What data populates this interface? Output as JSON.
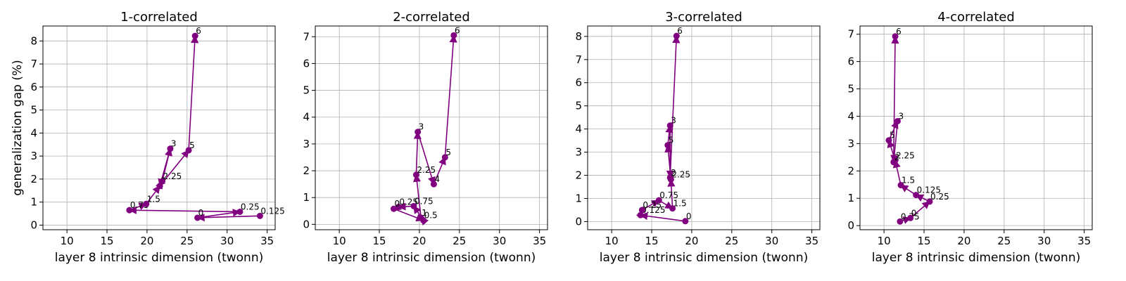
{
  "chart_data": [
    {
      "type": "line",
      "title": "1-correlated",
      "xlabel": "layer 8 intrinsic dimension (twonn)",
      "ylabel": "generalization gap (%)",
      "xlim": [
        7,
        36
      ],
      "ylim": [
        -0.2,
        8.65
      ],
      "xticks": [
        10,
        15,
        20,
        25,
        30,
        35
      ],
      "yticks": [
        0,
        1,
        2,
        3,
        4,
        5,
        6,
        7,
        8
      ],
      "color": "#800080",
      "grid": true,
      "points": [
        {
          "label": "0",
          "x": 26.3,
          "y": 0.32
        },
        {
          "label": "0.125",
          "x": 34.1,
          "y": 0.4
        },
        {
          "label": "0.25",
          "x": 31.6,
          "y": 0.58
        },
        {
          "label": "0.75",
          "x": 17.8,
          "y": 0.65
        },
        {
          "label": "1.5",
          "x": 19.9,
          "y": 0.92
        },
        {
          "label": "1",
          "x": 21.6,
          "y": 1.7
        },
        {
          "label": "2.25",
          "x": 21.9,
          "y": 1.9
        },
        {
          "label": "3",
          "x": 22.9,
          "y": 3.32
        },
        {
          "label": "5",
          "x": 25.2,
          "y": 3.25
        },
        {
          "label": "6",
          "x": 26.0,
          "y": 8.22
        }
      ],
      "path": [
        "0.125",
        "0",
        "0.25",
        "0.75",
        "1.5",
        "1",
        "2.25",
        "3",
        "1",
        "5",
        "6"
      ]
    },
    {
      "type": "line",
      "title": "2-correlated",
      "xlabel": "layer 8 intrinsic dimension (twonn)",
      "ylabel": "",
      "xlim": [
        7,
        36
      ],
      "ylim": [
        -0.2,
        7.4
      ],
      "xticks": [
        10,
        15,
        20,
        25,
        30,
        35
      ],
      "yticks": [
        0,
        1,
        2,
        3,
        4,
        5,
        6,
        7
      ],
      "color": "#800080",
      "grid": true,
      "points": [
        {
          "label": "0.5",
          "x": 20.5,
          "y": 0.15
        },
        {
          "label": "1",
          "x": 20.2,
          "y": 0.25
        },
        {
          "label": "0.25",
          "x": 17.4,
          "y": 0.65
        },
        {
          "label": "0.75",
          "x": 19.3,
          "y": 0.68
        },
        {
          "label": "0",
          "x": 16.8,
          "y": 0.58
        },
        {
          "label": "2.25",
          "x": 19.6,
          "y": 1.85
        },
        {
          "label": "3",
          "x": 19.8,
          "y": 3.45
        },
        {
          "label": "4",
          "x": 21.8,
          "y": 1.5
        },
        {
          "label": "5",
          "x": 23.2,
          "y": 2.5
        },
        {
          "label": "6",
          "x": 24.3,
          "y": 7.05
        }
      ],
      "path": [
        "0.5",
        "0.75",
        "0.25",
        "0",
        "0.5",
        "1",
        "2.25",
        "3",
        "4",
        "5",
        "6"
      ]
    },
    {
      "type": "line",
      "title": "3-correlated",
      "xlabel": "layer 8 intrinsic dimension (twonn)",
      "ylabel": "",
      "xlim": [
        7,
        36
      ],
      "ylim": [
        -0.35,
        8.45
      ],
      "xticks": [
        10,
        15,
        20,
        25,
        30,
        35
      ],
      "yticks": [
        0,
        1,
        2,
        3,
        4,
        5,
        6,
        7,
        8
      ],
      "color": "#800080",
      "grid": true,
      "points": [
        {
          "label": "0",
          "x": 19.2,
          "y": 0.02
        },
        {
          "label": "0.125",
          "x": 13.6,
          "y": 0.28
        },
        {
          "label": "0.25",
          "x": 13.8,
          "y": 0.5
        },
        {
          "label": "0.75",
          "x": 15.9,
          "y": 0.92
        },
        {
          "label": "1.5",
          "x": 17.6,
          "y": 0.57
        },
        {
          "label": "2.25",
          "x": 17.4,
          "y": 1.82
        },
        {
          "label": "2",
          "x": 17.3,
          "y": 1.9
        },
        {
          "label": "5",
          "x": 17.0,
          "y": 3.3
        },
        {
          "label": "3",
          "x": 17.3,
          "y": 4.15
        },
        {
          "label": "6",
          "x": 18.1,
          "y": 8.02
        }
      ],
      "path": [
        "0",
        "0.125",
        "0.25",
        "0.75",
        "1.5",
        "2.25",
        "5",
        "3",
        "2",
        "6"
      ]
    },
    {
      "type": "line",
      "title": "4-correlated",
      "xlabel": "layer 8 intrinsic dimension (twonn)",
      "ylabel": "",
      "xlim": [
        7,
        36
      ],
      "ylim": [
        -0.15,
        7.3
      ],
      "xticks": [
        10,
        15,
        20,
        25,
        30,
        35
      ],
      "yticks": [
        0,
        1,
        2,
        3,
        4,
        5,
        6,
        7
      ],
      "color": "#800080",
      "grid": true,
      "points": [
        {
          "label": "0.75",
          "x": 12.0,
          "y": 0.15
        },
        {
          "label": "0",
          "x": 13.3,
          "y": 0.28
        },
        {
          "label": "0.25",
          "x": 15.7,
          "y": 0.88
        },
        {
          "label": "0.125",
          "x": 14.0,
          "y": 1.12
        },
        {
          "label": "1.5",
          "x": 12.1,
          "y": 1.48
        },
        {
          "label": "2.25",
          "x": 11.4,
          "y": 2.38
        },
        {
          "label": "2",
          "x": 11.2,
          "y": 2.32
        },
        {
          "label": "5",
          "x": 10.6,
          "y": 3.12
        },
        {
          "label": "3",
          "x": 11.7,
          "y": 3.82
        },
        {
          "label": "6",
          "x": 11.4,
          "y": 6.92
        }
      ],
      "path": [
        "0.75",
        "0",
        "0.25",
        "0.125",
        "1.5",
        "2.25",
        "5",
        "3",
        "2",
        "6"
      ]
    }
  ]
}
